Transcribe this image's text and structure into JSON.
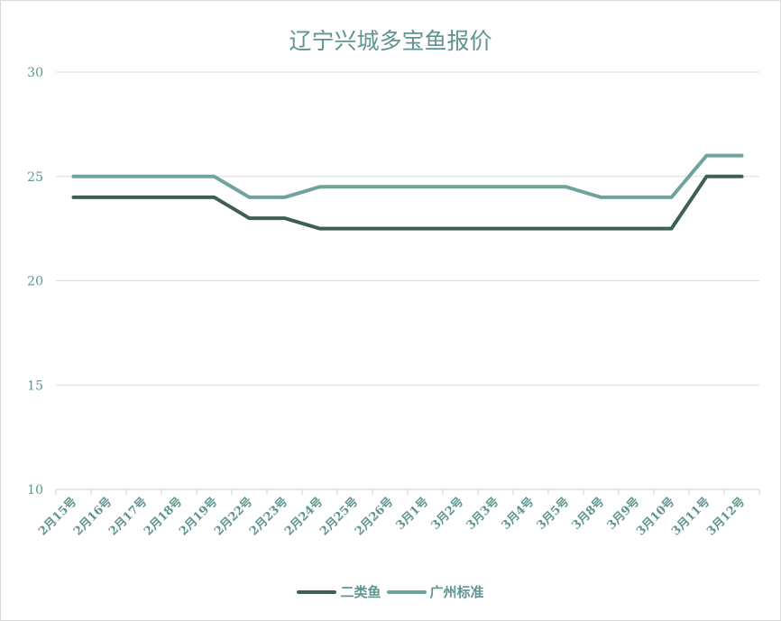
{
  "chart_data": {
    "type": "line",
    "title": "辽宁兴城多宝鱼报价",
    "xlabel": "",
    "ylabel": "",
    "ylim": [
      10,
      30
    ],
    "yticks": [
      "10",
      "15",
      "20",
      "25",
      "30"
    ],
    "grid": true,
    "legend_position": "bottom",
    "categories": [
      "2月15号",
      "2月16号",
      "2月17号",
      "2月18号",
      "2月19号",
      "2月22号",
      "2月23号",
      "2月24号",
      "2月25号",
      "2月26号",
      "3月1号",
      "3月2号",
      "3月3号",
      "3月4号",
      "3月5号",
      "3月8号",
      "3月9号",
      "3月10号",
      "3月11号",
      "3月12号"
    ],
    "series": [
      {
        "name": "二类鱼",
        "color": "#3f5e58",
        "values": [
          24,
          24,
          24,
          24,
          24,
          23,
          23,
          22.5,
          22.5,
          22.5,
          22.5,
          22.5,
          22.5,
          22.5,
          22.5,
          22.5,
          22.5,
          22.5,
          25,
          25
        ]
      },
      {
        "name": "广州标准",
        "color": "#6fa39c",
        "values": [
          25,
          25,
          25,
          25,
          25,
          24,
          24,
          24.5,
          24.5,
          24.5,
          24.5,
          24.5,
          24.5,
          24.5,
          24.5,
          24,
          24,
          24,
          26,
          26
        ]
      }
    ]
  }
}
